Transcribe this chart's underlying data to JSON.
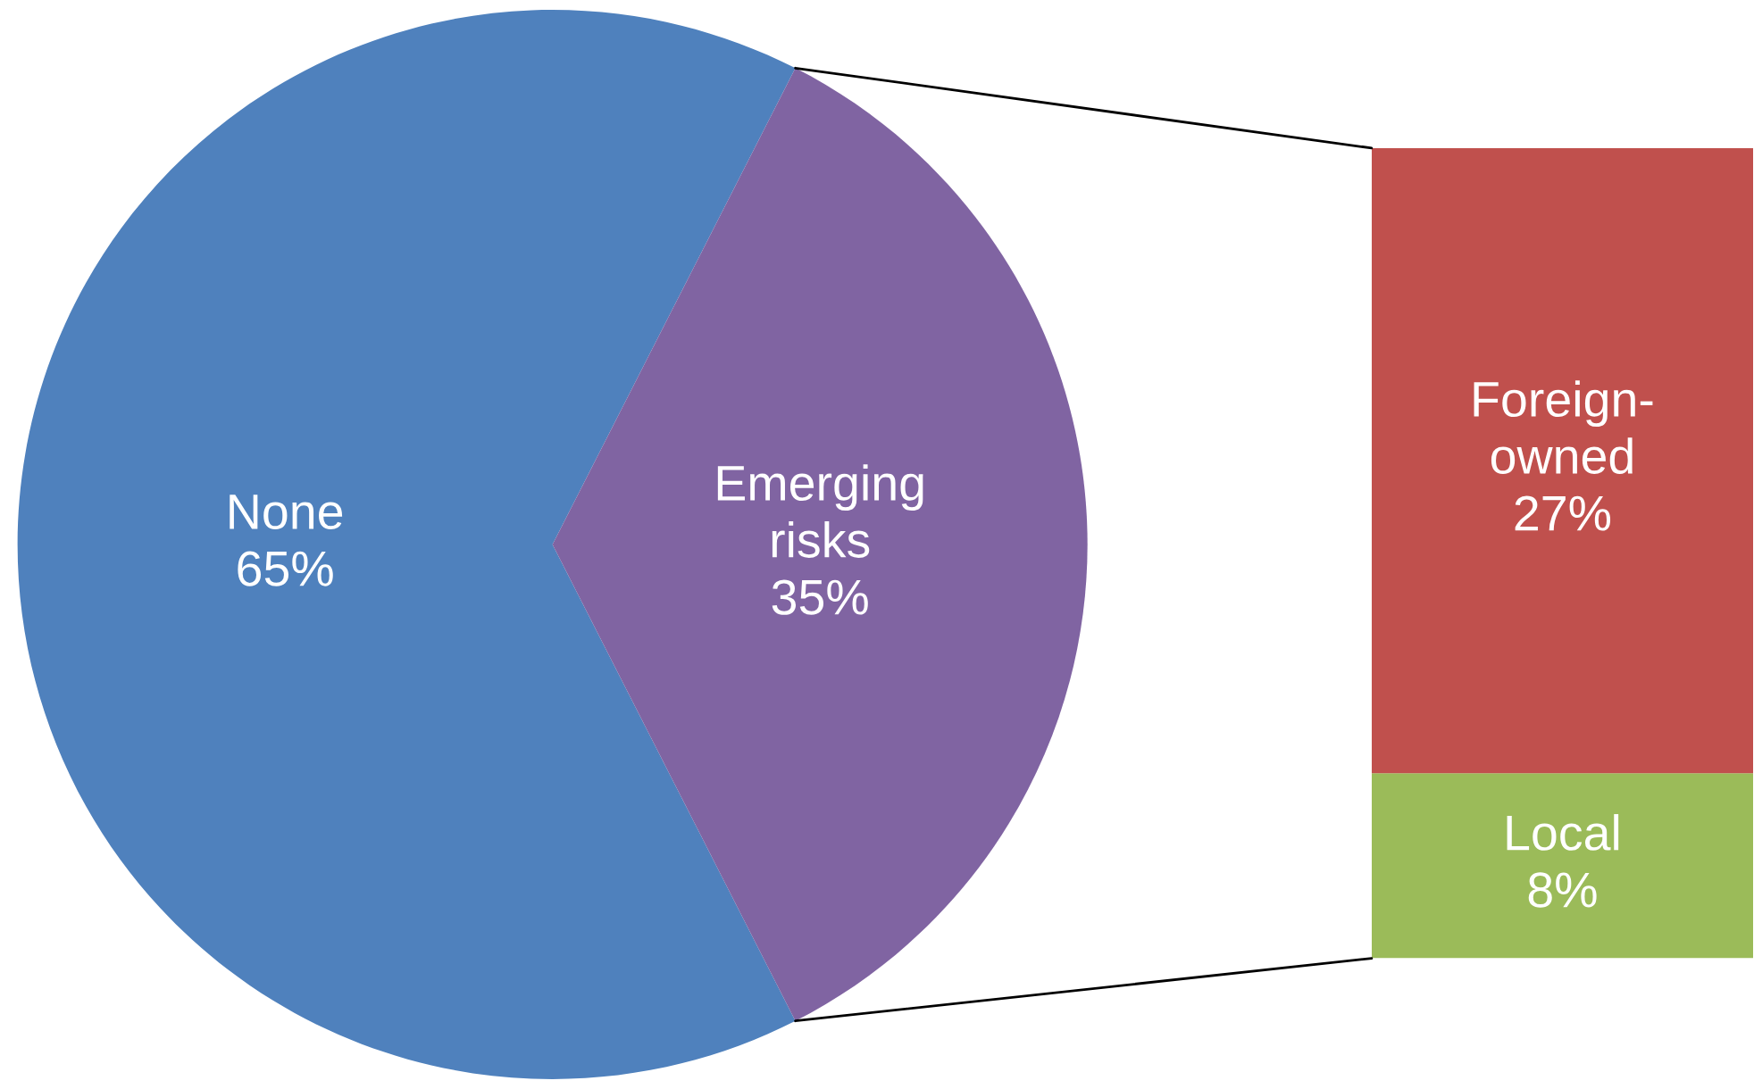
{
  "chart_data": [
    {
      "type": "pie",
      "categories": [
        "None",
        "Emerging risks"
      ],
      "values": [
        65,
        35
      ],
      "colors": [
        "#4f81bd",
        "#8064a2"
      ],
      "value_labels": [
        "65%",
        "35%"
      ]
    },
    {
      "type": "bar",
      "stacked": true,
      "categories": [
        null
      ],
      "data_labels": false,
      "series": [
        {
          "name": "Local",
          "color": "#9bbb59",
          "values": [
            8
          ],
          "value_labels": [
            "8%"
          ]
        },
        {
          "name": "Foreign-owned",
          "color": "#c0504d",
          "values": [
            27
          ],
          "value_labels": [
            "27%"
          ]
        }
      ]
    }
  ]
}
